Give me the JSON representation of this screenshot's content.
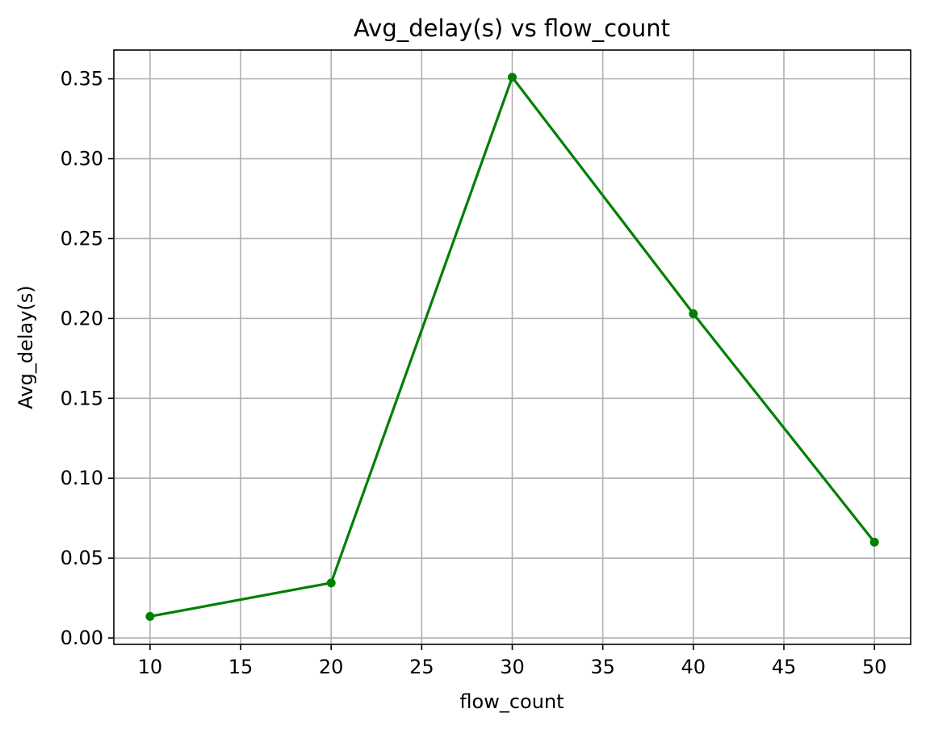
{
  "chart_data": {
    "type": "line",
    "title": "Avg_delay(s) vs flow_count",
    "xlabel": "flow_count",
    "ylabel": "Avg_delay(s)",
    "xlim": [
      8,
      52
    ],
    "ylim": [
      -0.004,
      0.368
    ],
    "x_ticks": [
      10,
      15,
      20,
      25,
      30,
      35,
      40,
      45,
      50
    ],
    "x_tick_labels": [
      "10",
      "15",
      "20",
      "25",
      "30",
      "35",
      "40",
      "45",
      "50"
    ],
    "y_ticks": [
      0.0,
      0.05,
      0.1,
      0.15,
      0.2,
      0.25,
      0.3,
      0.35
    ],
    "y_tick_labels": [
      "0.00",
      "0.05",
      "0.10",
      "0.15",
      "0.20",
      "0.25",
      "0.30",
      "0.35"
    ],
    "grid": true,
    "legend": "none",
    "series": [
      {
        "x": [
          10,
          20,
          30,
          40,
          50
        ],
        "values": [
          0.0135,
          0.0345,
          0.351,
          0.203,
          0.06
        ],
        "color": "#008000",
        "marker": "circle"
      }
    ]
  }
}
